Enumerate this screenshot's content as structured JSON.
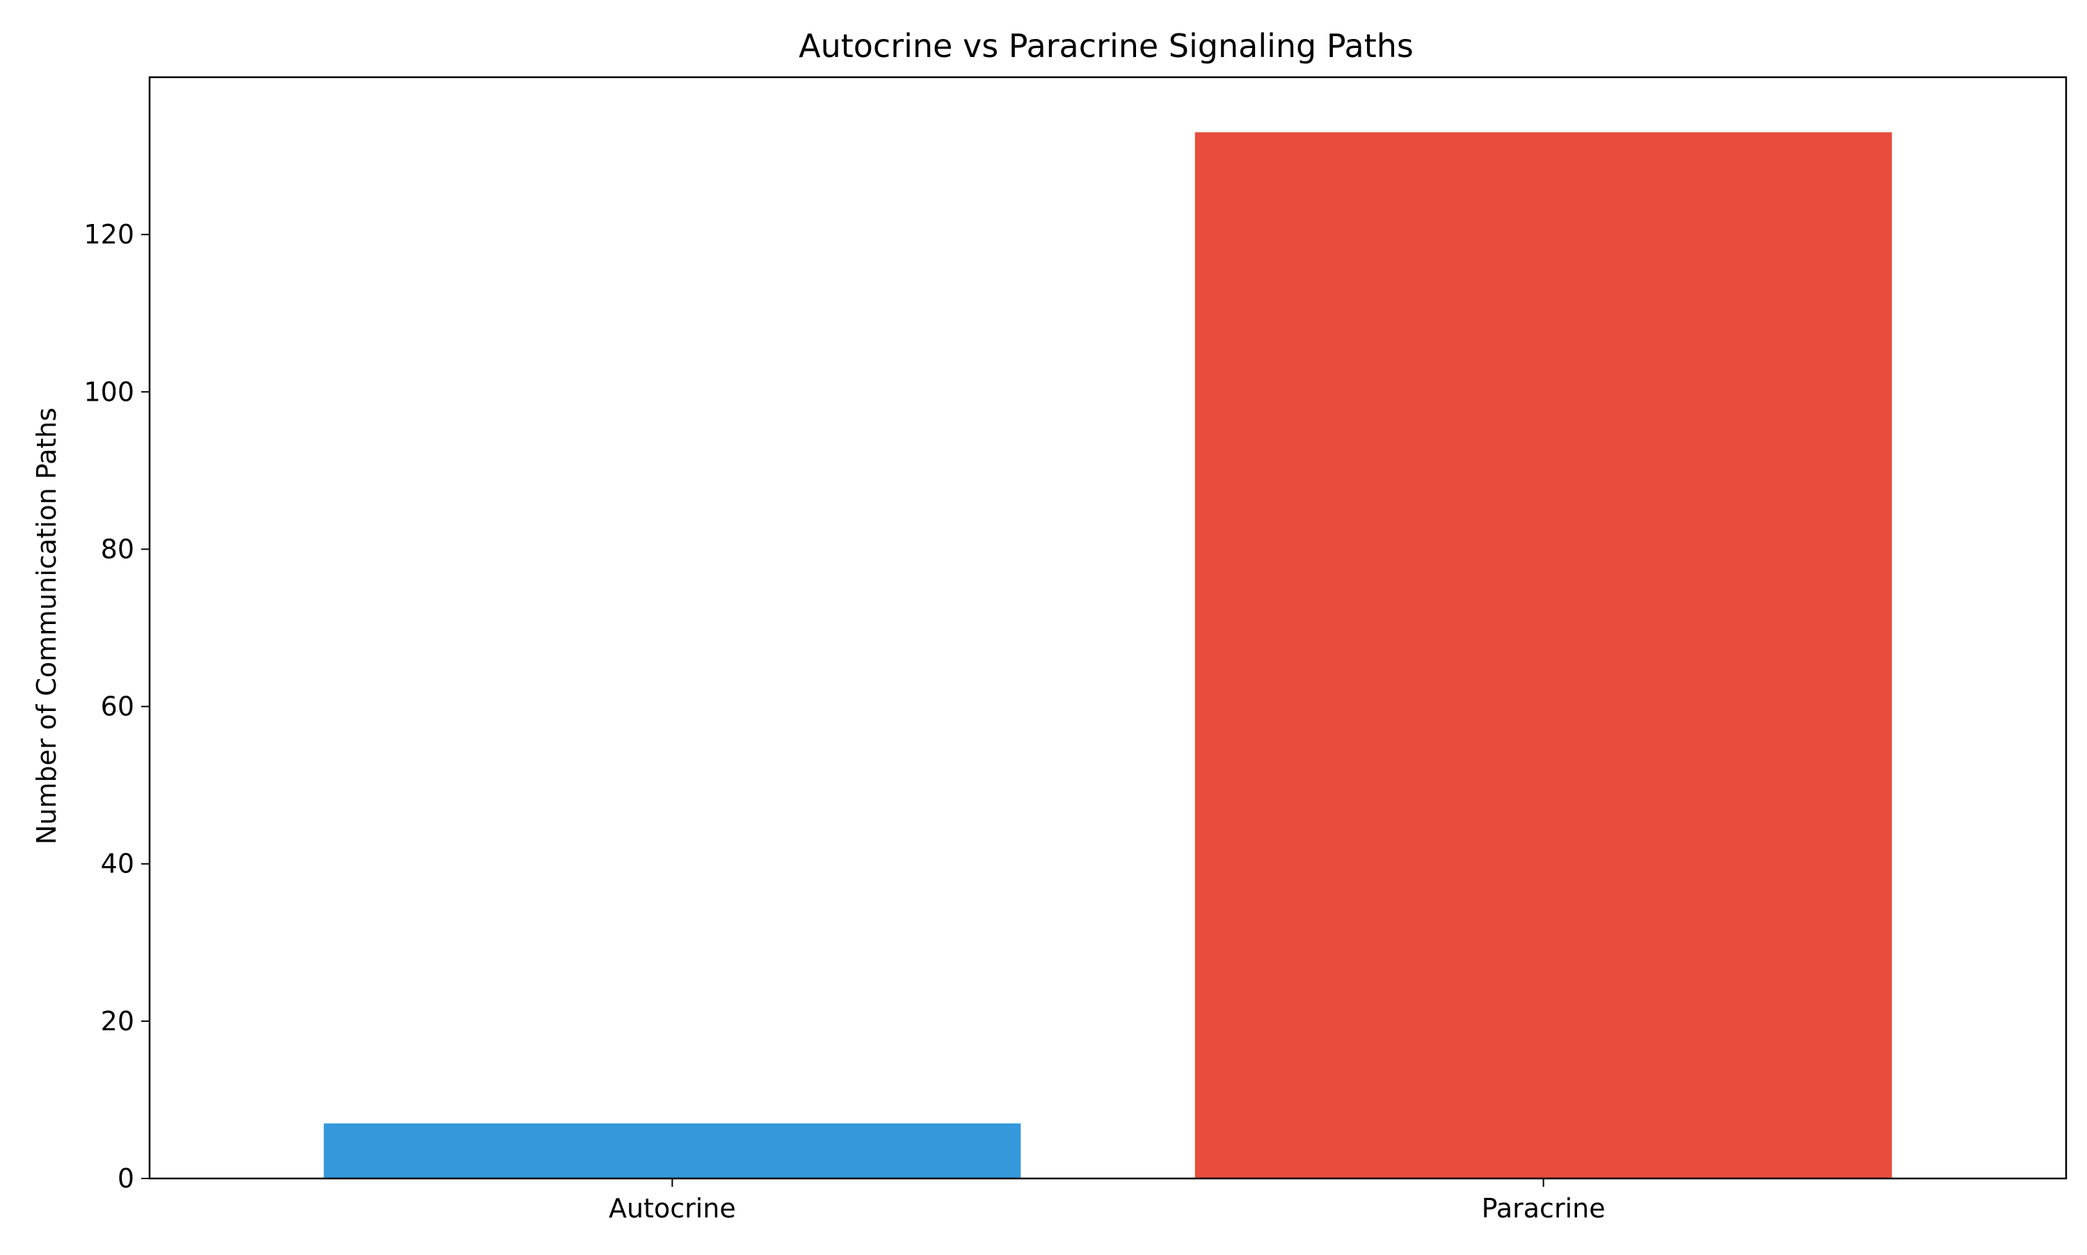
{
  "chart_data": {
    "type": "bar",
    "title": "Autocrine vs Paracrine Signaling Paths",
    "xlabel": "",
    "ylabel": "Number of Communication Paths",
    "categories": [
      "Autocrine",
      "Paracrine"
    ],
    "values": [
      7,
      133
    ],
    "colors": [
      "#3498db",
      "#e74c3c"
    ],
    "ylim": [
      0,
      140
    ],
    "yticks": [
      0,
      20,
      40,
      60,
      80,
      100,
      120
    ],
    "grid": false,
    "legend": "none"
  }
}
